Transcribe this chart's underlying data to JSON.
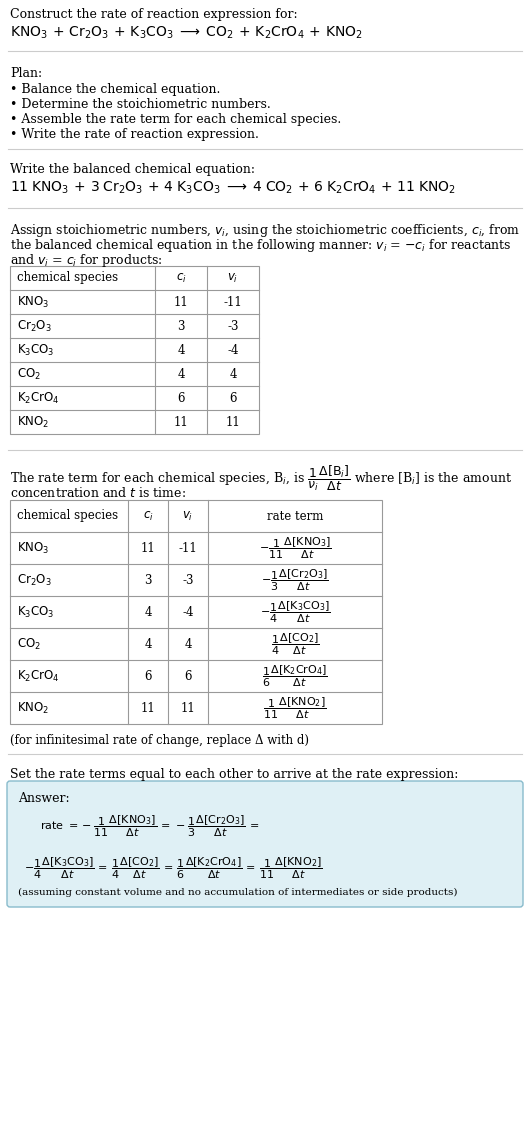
{
  "title_text": "Construct the rate of reaction expression for:",
  "plan_header": "Plan:",
  "plan_steps": [
    "• Balance the chemical equation.",
    "• Determine the stoichiometric numbers.",
    "• Assemble the rate term for each chemical species.",
    "• Write the rate of reaction expression."
  ],
  "balanced_header": "Write the balanced chemical equation:",
  "table1_rows": [
    [
      "KNO_3",
      "11",
      "-11"
    ],
    [
      "Cr_2O_3",
      "3",
      "-3"
    ],
    [
      "K_3CO_3",
      "4",
      "-4"
    ],
    [
      "CO_2",
      "4",
      "4"
    ],
    [
      "K_2CrO_4",
      "6",
      "6"
    ],
    [
      "KNO_2",
      "11",
      "11"
    ]
  ],
  "infinitesimal_note": "(for infinitesimal rate of change, replace Δ with d)",
  "set_rate_text": "Set the rate terms equal to each other to arrive at the rate expression:",
  "answer_label": "Answer:",
  "answer_box_color": "#dff0f5",
  "answer_box_border": "#88bbcc",
  "assuming_note": "(assuming constant volume and no accumulation of intermediates or side products)",
  "bg_color": "#ffffff",
  "text_color": "#000000",
  "table_border_color": "#999999",
  "separator_color": "#cccccc"
}
